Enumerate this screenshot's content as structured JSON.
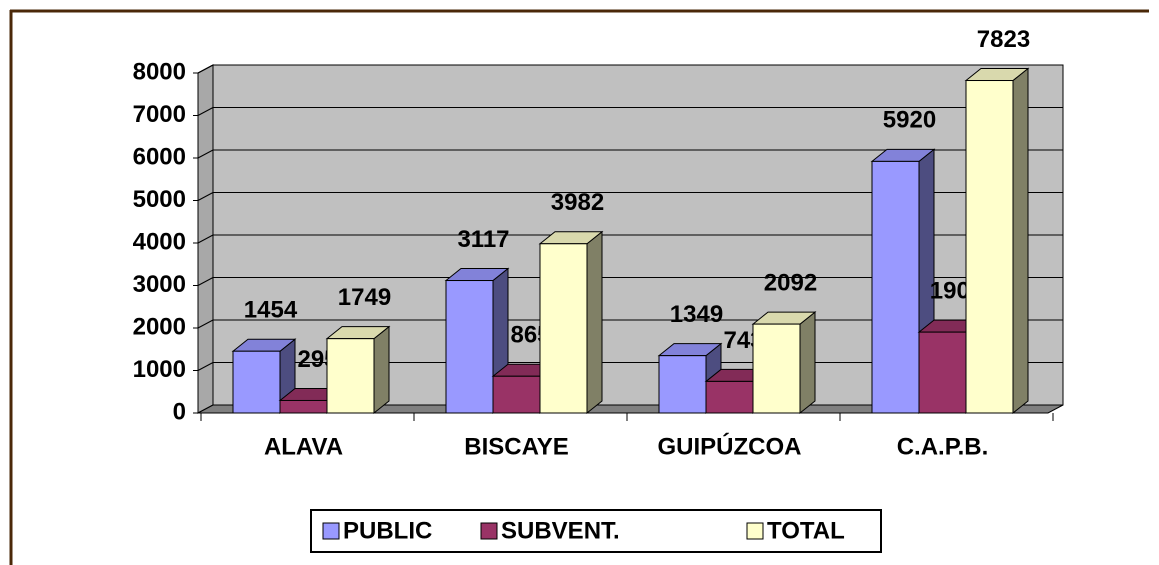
{
  "chart_data": {
    "type": "bar3d",
    "categories": [
      "ALAVA",
      "BISCAYE",
      "GUIPÚZCOA",
      "C.A.P.B."
    ],
    "series": [
      {
        "name": "PUBLIC",
        "color": "#9999ff",
        "values": [
          1454,
          3117,
          1349,
          5920
        ]
      },
      {
        "name": "SUBVENT.",
        "color": "#993366",
        "values": [
          295,
          865,
          743,
          1903
        ]
      },
      {
        "name": "TOTAL",
        "color": "#ffffcc",
        "values": [
          1749,
          3982,
          2092,
          7823
        ]
      }
    ],
    "ylim": [
      0,
      8000
    ],
    "yticks": [
      0,
      1000,
      2000,
      3000,
      4000,
      5000,
      6000,
      7000,
      8000
    ],
    "grid": true,
    "legend": "bottom"
  }
}
